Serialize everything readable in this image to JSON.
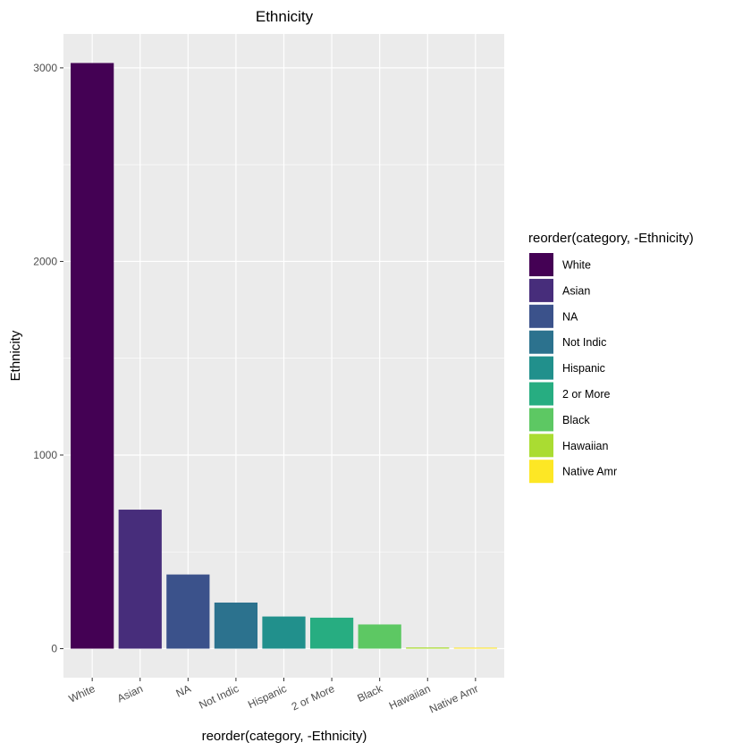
{
  "chart_data": {
    "type": "bar",
    "title": "Ethnicity",
    "xlabel": "reorder(category, -Ethnicity)",
    "ylabel": "Ethnicity",
    "categories": [
      "White",
      "Asian",
      "NA",
      "Not Indic",
      "Hispanic",
      "2 or More",
      "Black",
      "Hawaiian",
      "Native Amr"
    ],
    "values": [
      3025,
      718,
      383,
      238,
      166,
      160,
      125,
      6,
      5
    ],
    "colors": [
      "#440154",
      "#472D7B",
      "#3B528B",
      "#2C728E",
      "#21908C",
      "#27AD81",
      "#5DC863",
      "#AADC32",
      "#FDE725"
    ],
    "ylim": [
      -150,
      3175
    ],
    "yticks": [
      0,
      1000,
      2000,
      3000
    ],
    "grid": true,
    "legend": {
      "title": "reorder(category, -Ethnicity)",
      "position": "right"
    }
  }
}
